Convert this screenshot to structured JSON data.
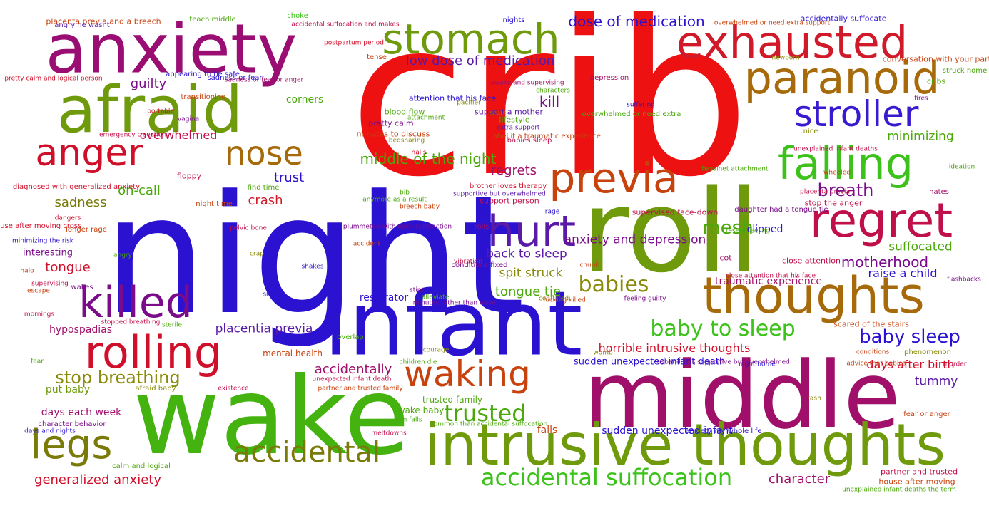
{
  "words": [
    {
      "text": "crib",
      "color": "#ee1111"
    },
    {
      "text": "night",
      "color": "#2a12d0"
    },
    {
      "text": "wake",
      "color": "#45b30f"
    },
    {
      "text": "middle",
      "color": "#a0106a"
    },
    {
      "text": "roll",
      "color": "#6e9a0c"
    },
    {
      "text": "infant",
      "color": "#2a12d0"
    },
    {
      "text": "anxiety",
      "color": "#9a0e74"
    },
    {
      "text": "afraid",
      "color": "#6e9a0c"
    },
    {
      "text": "intrusive thoughts",
      "color": "#6e9a0c"
    },
    {
      "text": "exhausted",
      "color": "#d01a2a"
    },
    {
      "text": "stomach",
      "color": "#6e9a0c"
    },
    {
      "text": "paranoid",
      "color": "#a66a0a"
    },
    {
      "text": "thoughts",
      "color": "#a66a0a"
    },
    {
      "text": "stroller",
      "color": "#3a1ad0"
    },
    {
      "text": "falling",
      "color": "#3cc21a"
    },
    {
      "text": "regret",
      "color": "#c0104a"
    },
    {
      "text": "previa",
      "color": "#c8420e"
    },
    {
      "text": "hurt",
      "color": "#5a1aa8"
    },
    {
      "text": "killed",
      "color": "#7a0c8a"
    },
    {
      "text": "rolling",
      "color": "#d0102a"
    },
    {
      "text": "anger",
      "color": "#d0102a"
    },
    {
      "text": "nose",
      "color": "#a66a0a"
    },
    {
      "text": "legs",
      "color": "#7a7a08"
    },
    {
      "text": "waking",
      "color": "#c8420e"
    },
    {
      "text": "accidental",
      "color": "#7a7a08"
    },
    {
      "text": "accidental suffocation",
      "color": "#3cc21a"
    },
    {
      "text": "trusted",
      "color": "#4aa80a"
    },
    {
      "text": "baby to sleep",
      "color": "#3cc21a"
    },
    {
      "text": "babies",
      "color": "#8a8a0a"
    },
    {
      "text": "baby sleep",
      "color": "#2a12d0"
    },
    {
      "text": "stop breathing",
      "color": "#8a8a0a"
    },
    {
      "text": "dose of medication",
      "color": "#2a12d0"
    },
    {
      "text": "low dose of medication",
      "color": "#5a1aa8"
    },
    {
      "text": "mesh",
      "color": "#4aa80a"
    },
    {
      "text": "breath",
      "color": "#7a0c8a"
    },
    {
      "text": "motherhood",
      "color": "#7a0c8a"
    },
    {
      "text": "generalized anxiety",
      "color": "#d0102a"
    },
    {
      "text": "character",
      "color": "#a0106a"
    },
    {
      "text": "middle of the night",
      "color": "#4aa80a"
    },
    {
      "text": "guilty",
      "color": "#7a0c8a"
    },
    {
      "text": "kill",
      "color": "#7a0c8a"
    },
    {
      "text": "regrets",
      "color": "#a0106a"
    },
    {
      "text": "overwhelmed",
      "color": "#c0104a"
    },
    {
      "text": "trust",
      "color": "#2a12d0"
    },
    {
      "text": "on-call",
      "color": "#4aa80a"
    },
    {
      "text": "sadness",
      "color": "#7a7a08"
    },
    {
      "text": "crash",
      "color": "#d01a2a"
    },
    {
      "text": "tongue",
      "color": "#d0102a"
    },
    {
      "text": "accidentally",
      "color": "#a0106a"
    },
    {
      "text": "placentia previa",
      "color": "#5a1aa8"
    },
    {
      "text": "tongue tie",
      "color": "#4aa80a"
    },
    {
      "text": "back to sleep",
      "color": "#5a1aa8"
    },
    {
      "text": "spit struck",
      "color": "#8a8a0a"
    },
    {
      "text": "minimizing",
      "color": "#4aa80a"
    },
    {
      "text": "suffocated",
      "color": "#4aa80a"
    },
    {
      "text": "tummy",
      "color": "#5a1aa8"
    },
    {
      "text": "anxiety and depression",
      "color": "#7a0c8a"
    },
    {
      "text": "raise a child",
      "color": "#2a12d0"
    },
    {
      "text": "days after birth",
      "color": "#d0102a"
    },
    {
      "text": "horrible intrusive thoughts",
      "color": "#d0102a"
    },
    {
      "text": "hypospadias",
      "color": "#a0106a"
    },
    {
      "text": "put baby",
      "color": "#6e9a0c"
    },
    {
      "text": "days each week",
      "color": "#a0106a"
    },
    {
      "text": "corners",
      "color": "#4aa80a"
    },
    {
      "text": "clipped",
      "color": "#2a12d0"
    },
    {
      "text": "respirator",
      "color": "#2a12d0"
    },
    {
      "text": "falls",
      "color": "#c8420e"
    },
    {
      "text": "traumatic experience",
      "color": "#a0106a"
    },
    {
      "text": "interesting",
      "color": "#7a0c8a"
    },
    {
      "text": "sudden unexpected infant",
      "color": "#2a12d0"
    },
    {
      "text": "sudden unexpected infant death",
      "color": "#2a12d0"
    },
    {
      "text": "wake baby",
      "color": "#4aa80a"
    },
    {
      "text": "trusted family",
      "color": "#4aa80a"
    },
    {
      "text": "mental health",
      "color": "#c8420e"
    },
    {
      "text": "placenta previa and a breech",
      "color": "#c8420e"
    },
    {
      "text": "teach middle",
      "color": "#4aa80a"
    },
    {
      "text": "choke",
      "color": "#3cc21a"
    },
    {
      "text": "angry he wasnt",
      "color": "#5a1aa8"
    },
    {
      "text": "accidental suffocation and makes",
      "color": "#c0104a"
    },
    {
      "text": "nights",
      "color": "#2a12d0"
    },
    {
      "text": "overwhelmed or need extra support",
      "color": "#c8420e"
    },
    {
      "text": "accidentally suffocate",
      "color": "#2a12d0"
    },
    {
      "text": "conversation with your partner",
      "color": "#c8420e"
    },
    {
      "text": "struck home",
      "color": "#4aa80a"
    },
    {
      "text": "cribs",
      "color": "#4aa80a"
    },
    {
      "text": "sadness or fear",
      "color": "#2a12d0"
    },
    {
      "text": "tense",
      "color": "#c8420e"
    },
    {
      "text": "postpartum period",
      "color": "#d0102a"
    },
    {
      "text": "depression",
      "color": "#a0106a"
    },
    {
      "text": "newborn",
      "color": "#8a8a0a"
    },
    {
      "text": "pretty calm and logical person",
      "color": "#d0102a"
    },
    {
      "text": "appearing to be safe",
      "color": "#2a12d0"
    },
    {
      "text": "sadness or fear or anger",
      "color": "#a0106a"
    },
    {
      "text": "transitioning",
      "color": "#c8420e"
    },
    {
      "text": "attention that his face",
      "color": "#2a12d0"
    },
    {
      "text": "pacifier",
      "color": "#8a8a0a"
    },
    {
      "text": "characters",
      "color": "#4aa80a"
    },
    {
      "text": "awake and supervising",
      "color": "#a0106a"
    },
    {
      "text": "fires",
      "color": "#7a0c8a"
    },
    {
      "text": "portable",
      "color": "#d0102a"
    },
    {
      "text": "scale",
      "color": "#8a8a0a"
    },
    {
      "text": "blood flow",
      "color": "#4aa80a"
    },
    {
      "text": "support a mother",
      "color": "#5a1aa8"
    },
    {
      "text": "suffering",
      "color": "#2a12d0"
    },
    {
      "text": "vagina",
      "color": "#7a0c8a"
    },
    {
      "text": "burp",
      "color": "#8a8a0a"
    },
    {
      "text": "attachment",
      "color": "#4aa80a"
    },
    {
      "text": "lifestyle",
      "color": "#4aa80a"
    },
    {
      "text": "overwhelmed or need extra",
      "color": "#4aa80a"
    },
    {
      "text": "pretty calm",
      "color": "#7a0c8a"
    },
    {
      "text": "extra support",
      "color": "#5a1aa8"
    },
    {
      "text": "emergency c-section",
      "color": "#c0104a"
    },
    {
      "text": "nice",
      "color": "#8a8a0a"
    },
    {
      "text": "label it a traumatic experience",
      "color": "#c8420e"
    },
    {
      "text": "minutes to discuss",
      "color": "#c8420e"
    },
    {
      "text": "bedsharing",
      "color": "#8a8a0a"
    },
    {
      "text": "babies sleep",
      "color": "#c0104a"
    },
    {
      "text": "unexplained infant deaths",
      "color": "#c0104a"
    },
    {
      "text": "nails",
      "color": "#d0102a"
    },
    {
      "text": "bassinet attachment",
      "color": "#4aa80a"
    },
    {
      "text": "ideation",
      "color": "#4aa80a"
    },
    {
      "text": "wheeled",
      "color": "#c8420e"
    },
    {
      "text": "floppy",
      "color": "#c0104a"
    },
    {
      "text": "diagnosed with generalized anxiety",
      "color": "#d0102a"
    },
    {
      "text": "find time",
      "color": "#4aa80a"
    },
    {
      "text": "brother loves therapy",
      "color": "#d0102a"
    },
    {
      "text": "supportive but overwhelmed",
      "color": "#5a1aa8"
    },
    {
      "text": "bib",
      "color": "#4aa80a"
    },
    {
      "text": "placenta previa",
      "color": "#c0104a"
    },
    {
      "text": "hates",
      "color": "#a0106a"
    },
    {
      "text": "dangers",
      "color": "#d0102a"
    },
    {
      "text": "night time",
      "color": "#c8420e"
    },
    {
      "text": "anymore as a result",
      "color": "#4aa80a"
    },
    {
      "text": "support person",
      "color": "#c0104a"
    },
    {
      "text": "stop the anger",
      "color": "#c0104a"
    },
    {
      "text": "daughter had a tongue tie",
      "color": "#7a0c8a"
    },
    {
      "text": "breech baby",
      "color": "#c8420e"
    },
    {
      "text": "rage",
      "color": "#2a12d0"
    },
    {
      "text": "supervised face-down",
      "color": "#c0104a"
    },
    {
      "text": "house after moving cross",
      "color": "#d0102a"
    },
    {
      "text": "plummeted with each contraction",
      "color": "#7a0c8a"
    },
    {
      "text": "longer rage",
      "color": "#c8420e"
    },
    {
      "text": "pelvic bone",
      "color": "#c0104a"
    },
    {
      "text": "rolls",
      "color": "#a0106a"
    },
    {
      "text": "resent feeling",
      "color": "#4aa80a"
    },
    {
      "text": "minimizing the risk",
      "color": "#2a12d0"
    },
    {
      "text": "accident",
      "color": "#c8420e"
    },
    {
      "text": "cot",
      "color": "#a0106a"
    },
    {
      "text": "angry",
      "color": "#4aa80a"
    },
    {
      "text": "crap",
      "color": "#8a8a0a"
    },
    {
      "text": "vibration",
      "color": "#c0104a"
    },
    {
      "text": "conditions fixed",
      "color": "#7a0c8a"
    },
    {
      "text": "close attention",
      "color": "#c0104a"
    },
    {
      "text": "halo",
      "color": "#c8420e"
    },
    {
      "text": "shakes",
      "color": "#2a12d0"
    },
    {
      "text": "chunk",
      "color": "#c8420e"
    },
    {
      "text": "close attention that his face",
      "color": "#c0104a"
    },
    {
      "text": "flashbacks",
      "color": "#7a0c8a"
    },
    {
      "text": "supervising",
      "color": "#c0104a"
    },
    {
      "text": "escape",
      "color": "#c8420e"
    },
    {
      "text": "wakes",
      "color": "#7a0c8a"
    },
    {
      "text": "sneaks",
      "color": "#2a12d0"
    },
    {
      "text": "stint",
      "color": "#7a0c8a"
    },
    {
      "text": "alleviate",
      "color": "#4aa80a"
    },
    {
      "text": "minutes rather than wake",
      "color": "#7a0c8a"
    },
    {
      "text": "conflated",
      "color": "#8a8a0a"
    },
    {
      "text": "fucking killed",
      "color": "#c8420e"
    },
    {
      "text": "feeling guilty",
      "color": "#7a0c8a"
    },
    {
      "text": "mornings",
      "color": "#c0104a"
    },
    {
      "text": "stopped breathing",
      "color": "#c0104a"
    },
    {
      "text": "sterile",
      "color": "#4aa80a"
    },
    {
      "text": "overlap",
      "color": "#4aa80a"
    },
    {
      "text": "scared of the stairs",
      "color": "#c8420e"
    },
    {
      "text": "courage",
      "color": "#8a8a0a"
    },
    {
      "text": "womb",
      "color": "#8a8a0a"
    },
    {
      "text": "conditions",
      "color": "#c8420e"
    },
    {
      "text": "phenomenon",
      "color": "#8a8a0a"
    },
    {
      "text": "fear",
      "color": "#4aa80a"
    },
    {
      "text": "children die",
      "color": "#4aa80a"
    },
    {
      "text": "husband was supportive but overwhelmed",
      "color": "#7a0c8a"
    },
    {
      "text": "night home",
      "color": "#2a12d0"
    },
    {
      "text": "advice that babies",
      "color": "#c8420e"
    },
    {
      "text": "murder",
      "color": "#c0104a"
    },
    {
      "text": "unexpected infant death",
      "color": "#c0104a"
    },
    {
      "text": "afraid baby",
      "color": "#8a8a0a"
    },
    {
      "text": "existence",
      "color": "#c0104a"
    },
    {
      "text": "partner and trusted family",
      "color": "#c8420e"
    },
    {
      "text": "rash",
      "color": "#8a8a0a"
    },
    {
      "text": "character behavior",
      "color": "#7a0c8a"
    },
    {
      "text": "son falls",
      "color": "#4aa80a"
    },
    {
      "text": "common than accidental suffocation",
      "color": "#4aa80a"
    },
    {
      "text": "fear or anger",
      "color": "#c8420e"
    },
    {
      "text": "days and nights",
      "color": "#2a12d0"
    },
    {
      "text": "meltdowns",
      "color": "#c0104a"
    },
    {
      "text": "anxiety my whole life",
      "color": "#2a12d0"
    },
    {
      "text": "partner and trusted",
      "color": "#c0104a"
    },
    {
      "text": "calm and logical",
      "color": "#4aa80a"
    },
    {
      "text": "house after moving",
      "color": "#c8420e"
    },
    {
      "text": "unexplained infant deaths the term",
      "color": "#4aa80a"
    }
  ]
}
